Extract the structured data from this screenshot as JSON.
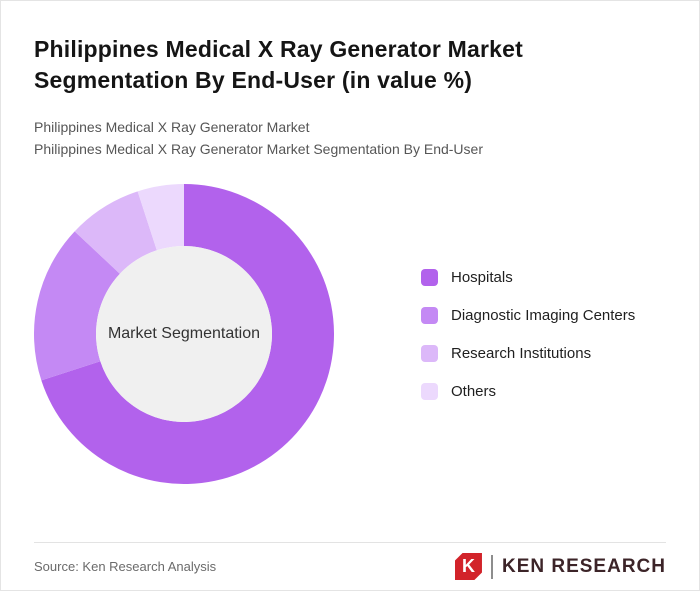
{
  "header": {
    "title": "Philippines Medical X Ray Generator Market Segmentation By End-User (in value %)",
    "subtitle1": "Philippines Medical X Ray Generator Market",
    "subtitle2": "Philippines Medical X Ray Generator Market Segmentation By End-User"
  },
  "chart_data": {
    "type": "pie",
    "donut": true,
    "title": "Philippines Medical X Ray Generator Market Segmentation By End-User (in value %)",
    "center_label": "Market Segmentation",
    "categories": [
      "Hospitals",
      "Diagnostic Imaging Centers",
      "Research Institutions",
      "Others"
    ],
    "values": [
      70,
      17,
      8,
      5
    ],
    "unit": "value %",
    "colors": [
      "#b262ec",
      "#c489f4",
      "#dcb8f9",
      "#ecd9fd"
    ],
    "center_fill": "#f0f0f0",
    "legend_position": "right",
    "start_angle_deg": 0
  },
  "footer": {
    "source": "Source: Ken Research Analysis",
    "logo_letter": "K",
    "logo_text": "KEN RESEARCH",
    "logo_color": "#d2232a",
    "logo_text_color": "#3c2428"
  }
}
